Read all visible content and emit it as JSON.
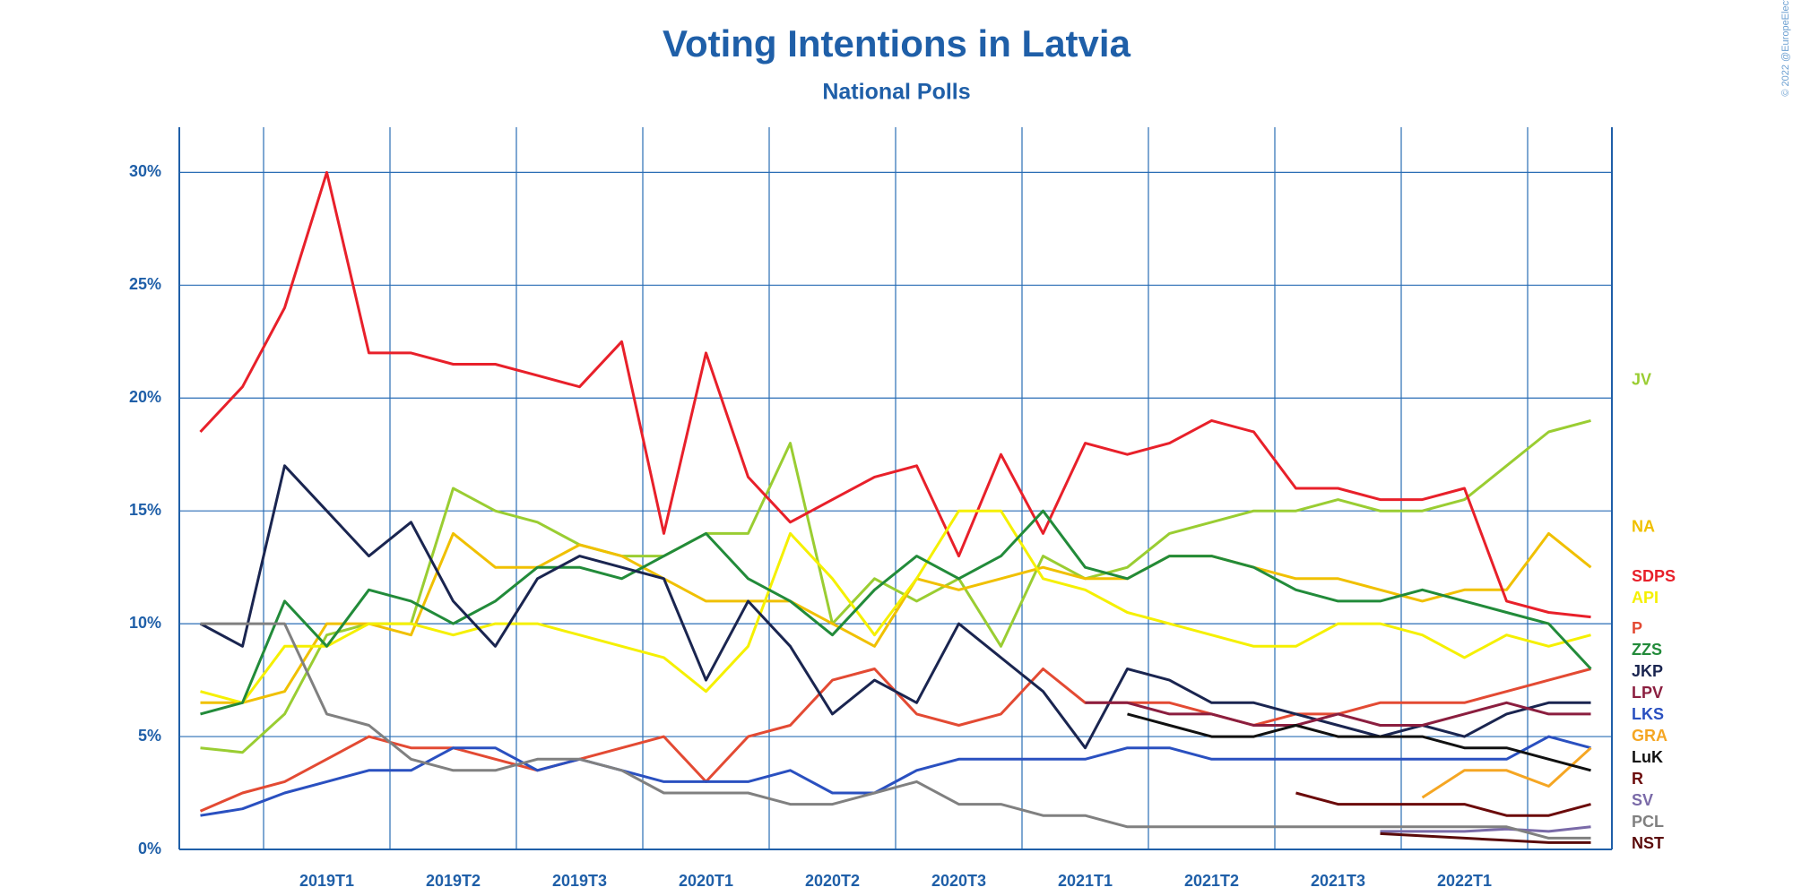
{
  "watermark": "© 2022 @EuropeElects",
  "chart_data": {
    "type": "line",
    "title": "Voting Intentions in Latvia",
    "subtitle": "National Polls",
    "categories": [
      null,
      null,
      null,
      "2019T1",
      null,
      null,
      "2019T2",
      null,
      null,
      "2019T3",
      null,
      null,
      "2020T1",
      null,
      null,
      "2020T2",
      null,
      null,
      "2020T3",
      null,
      null,
      "2021T1",
      null,
      null,
      "2021T2",
      null,
      null,
      "2021T3",
      null,
      null,
      "2022T1",
      null,
      null,
      null
    ],
    "ylim": [
      0,
      32
    ],
    "yticks": [
      {
        "value": 0,
        "label": "0%"
      },
      {
        "value": 5,
        "label": "5%"
      },
      {
        "value": 10,
        "label": "10%"
      },
      {
        "value": 15,
        "label": "15%"
      },
      {
        "value": 20,
        "label": "20%"
      },
      {
        "value": 25,
        "label": "25%"
      },
      {
        "value": 30,
        "label": "30%"
      }
    ],
    "grid": true,
    "series": [
      {
        "name": "JV",
        "color": "#9acd32",
        "values": [
          4.5,
          4.3,
          6,
          9.5,
          10,
          10,
          16,
          15,
          14.5,
          13.5,
          13,
          13,
          14,
          14,
          18,
          10,
          12,
          11,
          12,
          9,
          13,
          12,
          12.5,
          14,
          14.5,
          15,
          15,
          15.5,
          15,
          15,
          15.5,
          17,
          18.5,
          19
        ]
      },
      {
        "name": "NA",
        "color": "#f0c000",
        "values": [
          6.5,
          6.5,
          7,
          10,
          10,
          9.5,
          14,
          12.5,
          12.5,
          13.5,
          13,
          12,
          11,
          11,
          11,
          10,
          9,
          12,
          11.5,
          12,
          12.5,
          12,
          12,
          13,
          13,
          12.5,
          12,
          12,
          11.5,
          11,
          11.5,
          11.5,
          14,
          12.5
        ]
      },
      {
        "name": "SDPS",
        "color": "#e8202a",
        "values": [
          18.5,
          20.5,
          24,
          30,
          22,
          22,
          21.5,
          21.5,
          21,
          20.5,
          22.5,
          14,
          22,
          16.5,
          14.5,
          15.5,
          16.5,
          17,
          13,
          17.5,
          14,
          18,
          17.5,
          18,
          19,
          18.5,
          16,
          16,
          15.5,
          15.5,
          16,
          11,
          10.5,
          10.3
        ]
      },
      {
        "name": "API",
        "color": "#f5f000",
        "values": [
          7,
          6.5,
          9,
          9,
          10,
          10,
          9.5,
          10,
          10,
          9.5,
          9,
          8.5,
          7,
          9,
          14,
          12,
          9.5,
          12,
          15,
          15,
          12,
          11.5,
          10.5,
          10,
          9.5,
          9,
          9,
          10,
          10,
          9.5,
          8.5,
          9.5,
          9,
          9.5
        ]
      },
      {
        "name": "P",
        "color": "#e34a33",
        "values": [
          1.7,
          2.5,
          3,
          4,
          5,
          4.5,
          4.5,
          4,
          3.5,
          4,
          4.5,
          5,
          3,
          5,
          5.5,
          7.5,
          8,
          6,
          5.5,
          6,
          8,
          6.5,
          6.5,
          6.5,
          6,
          5.5,
          6,
          6,
          6.5,
          6.5,
          6.5,
          7,
          7.5,
          8
        ]
      },
      {
        "name": "ZZS",
        "color": "#228b3a",
        "values": [
          6,
          6.5,
          11,
          9,
          11.5,
          11,
          10,
          11,
          12.5,
          12.5,
          12,
          13,
          14,
          12,
          11,
          9.5,
          11.5,
          13,
          12,
          13,
          15,
          12.5,
          12,
          13,
          13,
          12.5,
          11.5,
          11,
          11,
          11.5,
          11,
          10.5,
          10,
          8
        ]
      },
      {
        "name": "JKP",
        "color": "#1a2550",
        "values": [
          10,
          9,
          17,
          15,
          13,
          14.5,
          11,
          9,
          12,
          13,
          12.5,
          12,
          7.5,
          11,
          9,
          6,
          7.5,
          6.5,
          10,
          8.5,
          7,
          4.5,
          8,
          7.5,
          6.5,
          6.5,
          6,
          5.5,
          5,
          5.5,
          5,
          6,
          6.5,
          6.5
        ]
      },
      {
        "name": "LPV",
        "color": "#8b1e3f",
        "values": [
          null,
          null,
          null,
          null,
          null,
          null,
          null,
          null,
          null,
          null,
          null,
          null,
          null,
          null,
          null,
          null,
          null,
          null,
          null,
          null,
          null,
          6.5,
          6.5,
          6,
          6,
          5.5,
          5.5,
          6,
          5.5,
          5.5,
          6,
          6.5,
          6,
          6
        ]
      },
      {
        "name": "LKS",
        "color": "#2a50c0",
        "values": [
          1.5,
          1.8,
          2.5,
          3,
          3.5,
          3.5,
          4.5,
          4.5,
          3.5,
          4,
          3.5,
          3,
          3,
          3,
          3.5,
          2.5,
          2.5,
          3.5,
          4,
          4,
          4,
          4,
          4.5,
          4.5,
          4,
          4,
          4,
          4,
          4,
          4,
          4,
          4,
          5,
          4.5
        ]
      },
      {
        "name": "GRA",
        "color": "#f5a623",
        "values": [
          null,
          null,
          null,
          null,
          null,
          null,
          null,
          null,
          null,
          null,
          null,
          null,
          null,
          null,
          null,
          null,
          null,
          null,
          null,
          null,
          null,
          null,
          null,
          null,
          null,
          null,
          null,
          null,
          null,
          2.3,
          3.5,
          3.5,
          2.8,
          4.5
        ]
      },
      {
        "name": "LuK",
        "color": "#111111",
        "values": [
          null,
          null,
          null,
          null,
          null,
          null,
          null,
          null,
          null,
          null,
          null,
          null,
          null,
          null,
          null,
          null,
          null,
          null,
          null,
          null,
          null,
          null,
          6,
          5.5,
          5,
          5,
          5.5,
          5,
          5,
          5,
          4.5,
          4.5,
          4,
          3.5
        ]
      },
      {
        "name": "R",
        "color": "#6b0a0a",
        "values": [
          null,
          null,
          null,
          null,
          null,
          null,
          null,
          null,
          null,
          null,
          null,
          null,
          null,
          null,
          null,
          null,
          null,
          null,
          null,
          null,
          null,
          null,
          null,
          null,
          null,
          null,
          2.5,
          2,
          2,
          2,
          2,
          1.5,
          1.5,
          2
        ]
      },
      {
        "name": "SV",
        "color": "#7a6aa8",
        "values": [
          null,
          null,
          null,
          null,
          null,
          null,
          null,
          null,
          null,
          null,
          null,
          null,
          null,
          null,
          null,
          null,
          null,
          null,
          null,
          null,
          null,
          null,
          null,
          null,
          null,
          null,
          null,
          null,
          0.8,
          0.8,
          0.8,
          0.9,
          0.8,
          1
        ]
      },
      {
        "name": "NST",
        "color": "#5a0a0a",
        "values": [
          null,
          null,
          null,
          null,
          null,
          null,
          null,
          null,
          null,
          null,
          null,
          null,
          null,
          null,
          null,
          null,
          null,
          null,
          null,
          null,
          null,
          null,
          null,
          null,
          null,
          null,
          null,
          null,
          0.7,
          0.6,
          0.5,
          0.4,
          0.3,
          0.3
        ]
      },
      {
        "name": "PCL",
        "color": "#808080",
        "values": [
          10,
          10,
          10,
          6,
          5.5,
          4,
          3.5,
          3.5,
          4,
          4,
          3.5,
          2.5,
          2.5,
          2.5,
          2,
          2,
          2.5,
          3,
          2,
          2,
          1.5,
          1.5,
          1,
          1,
          1,
          1,
          1,
          1,
          1,
          1,
          1,
          1,
          0.5,
          0.5
        ]
      }
    ]
  }
}
